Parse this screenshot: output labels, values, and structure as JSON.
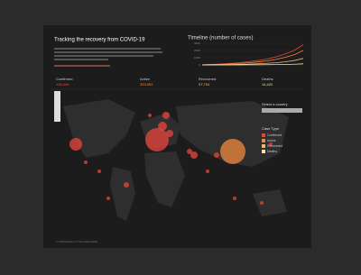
{
  "header": {
    "title": "Tracking the recovery from COVID-19"
  },
  "kpis": [
    {
      "label": "Confirmed",
      "value": "106,065"
    },
    {
      "label": "Active",
      "value": "329,592"
    },
    {
      "label": "Recovered",
      "value": "57,794"
    },
    {
      "label": "Deaths",
      "value": "14,422"
    }
  ],
  "controls": {
    "select_label": "Select a country",
    "case_type_label": "Case Type",
    "case_types": [
      "Confirmed",
      "Active",
      "Recovered",
      "Deaths"
    ]
  },
  "footer": "© 2020 Mapbox © OpenStreetMap",
  "chart_data": {
    "type": "line",
    "title": "Timeline (number of cases)",
    "ylim": [
      0,
      300000
    ],
    "yticks": [
      0,
      {
        "value": 100000,
        "label": "100K"
      },
      {
        "value": 200000,
        "label": "200K"
      },
      {
        "value": 300000,
        "label": "300K"
      }
    ],
    "series": [
      {
        "name": "Confirmed",
        "color": "#e8453c",
        "values": [
          2000,
          8000,
          12000,
          20000,
          30000,
          45000,
          60000,
          80000,
          110000,
          150000,
          200000,
          280000
        ]
      },
      {
        "name": "Active",
        "color": "#f08a3e",
        "values": [
          1500,
          6000,
          9000,
          14000,
          20000,
          30000,
          40000,
          55000,
          75000,
          105000,
          140000,
          200000
        ]
      },
      {
        "name": "Recovered",
        "color": "#f5b971",
        "values": [
          0,
          1000,
          2000,
          4000,
          7000,
          11000,
          16000,
          22000,
          30000,
          42000,
          60000,
          90000
        ]
      },
      {
        "name": "Deaths",
        "color": "#f5e3a0",
        "values": [
          0,
          200,
          400,
          700,
          1000,
          1500,
          2200,
          3000,
          4500,
          6500,
          9500,
          15000
        ]
      }
    ]
  }
}
